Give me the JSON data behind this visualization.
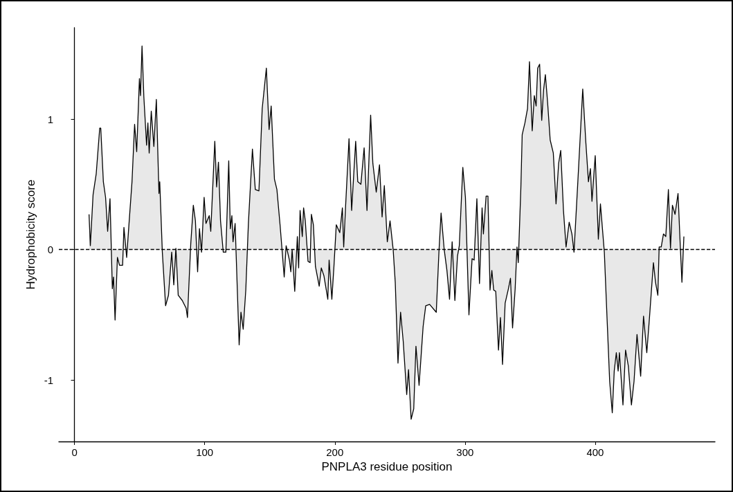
{
  "chart_data": {
    "type": "area",
    "xlabel": "PNPLA3 residue position",
    "ylabel": "Hydrophobicity score",
    "x": [
      11.2,
      12.2,
      14.3,
      16.7,
      19.4,
      20.2,
      22.2,
      23.9,
      25.5,
      27.3,
      29.1,
      30,
      31.2,
      33,
      34.6,
      37,
      38,
      40.1,
      41.7,
      44.2,
      46.2,
      47.8,
      49.9,
      50.7,
      51.9,
      53.3,
      55.4,
      56.4,
      57.4,
      59,
      61,
      62.9,
      64.9,
      65.5,
      67.5,
      70,
      72.2,
      74.7,
      76.3,
      77.9,
      79.7,
      82.8,
      85.8,
      86.8,
      89.3,
      91.3,
      92.9,
      94.6,
      96,
      97.6,
      99.6,
      101,
      103.5,
      104.7,
      107.8,
      109.2,
      110.6,
      112.2,
      114.3,
      116.3,
      118.5,
      119.7,
      120.9,
      121.8,
      123.4,
      126.5,
      127.9,
      129.6,
      131.6,
      133.6,
      136.7,
      138.9,
      141.7,
      144.2,
      147.4,
      149.5,
      151.1,
      153.6,
      155.5,
      158,
      161.1,
      162.6,
      165.1,
      166.2,
      167.2,
      169.2,
      171.2,
      172.2,
      173.3,
      175,
      176,
      177.3,
      179.4,
      181,
      182,
      183.5,
      185.1,
      188,
      189.6,
      191.6,
      194.6,
      195.6,
      197.7,
      199.3,
      201.1,
      203.8,
      205.8,
      206.8,
      208.2,
      210.9,
      212.9,
      216,
      217.6,
      220,
      222.5,
      224.7,
      227.5,
      229.2,
      231.8,
      234.3,
      236.3,
      238,
      240.3,
      242.4,
      244.8,
      246.4,
      248.5,
      250.5,
      252.5,
      255.2,
      256.6,
      258.6,
      260.6,
      262.3,
      264.7,
      267.8,
      269.8,
      272.8,
      277.9,
      280,
      281.6,
      284,
      286.1,
      288.1,
      290.1,
      292.2,
      294.2,
      295.6,
      298.3,
      300.3,
      303,
      305.4,
      307,
      309.1,
      311.1,
      313.1,
      314.1,
      316.2,
      317.6,
      319.2,
      320.6,
      322,
      323.6,
      325.7,
      327.2,
      328.8,
      330.8,
      333.3,
      334.9,
      336.5,
      338.5,
      339.9,
      340.9,
      342.9,
      343.9,
      346,
      348,
      349.5,
      351.6,
      353.2,
      354.6,
      355.8,
      357.3,
      358.9,
      360.3,
      361.7,
      363.4,
      365.4,
      367.8,
      369.9,
      371.9,
      373.5,
      375.6,
      377.6,
      380,
      382.1,
      383.7,
      386.7,
      390.4,
      392.8,
      394.8,
      396.3,
      397.5,
      400,
      402.4,
      404,
      407,
      409.1,
      411.1,
      413.1,
      414.6,
      416.2,
      417.6,
      418.6,
      421.3,
      423.3,
      425.4,
      427.8,
      429.8,
      432.1,
      434.9,
      437.1,
      439.6,
      441.6,
      444.7,
      446.3,
      448.1,
      449.1,
      450.7,
      452.4,
      454.2,
      456.2,
      457.8,
      459.3,
      461.3,
      463.6,
      465.4,
      466.6,
      468.1
    ],
    "series": [
      {
        "color": "#000000",
        "values": [
          0.27,
          0.03,
          0.42,
          0.58,
          0.93,
          0.93,
          0.52,
          0.4,
          0.14,
          0.39,
          -0.3,
          -0.21,
          -0.54,
          -0.06,
          -0.12,
          -0.12,
          0.17,
          -0.06,
          0.17,
          0.52,
          0.96,
          0.75,
          1.31,
          1.18,
          1.56,
          1.17,
          0.8,
          0.97,
          0.74,
          1.06,
          0.79,
          1.15,
          0.43,
          0.52,
          -0.02,
          -0.43,
          -0.35,
          -0.02,
          -0.27,
          0.01,
          -0.35,
          -0.39,
          -0.45,
          -0.52,
          0.04,
          0.34,
          0.22,
          -0.17,
          0.16,
          -0.02,
          0.4,
          0.2,
          0.26,
          0.14,
          0.83,
          0.48,
          0.67,
          0.22,
          -0.02,
          -0.02,
          0.68,
          0.16,
          0.26,
          0.06,
          0.2,
          -0.73,
          -0.48,
          -0.61,
          -0.31,
          0.2,
          0.77,
          0.46,
          0.45,
          1.08,
          1.39,
          0.92,
          1.1,
          0.54,
          0.46,
          0.18,
          -0.21,
          0.03,
          -0.08,
          -0.17,
          0,
          -0.32,
          0.1,
          -0.14,
          0.3,
          0.1,
          0.32,
          0.22,
          -0.09,
          -0.1,
          0.27,
          0.19,
          -0.13,
          -0.28,
          -0.14,
          -0.2,
          -0.38,
          -0.08,
          -0.38,
          -0.13,
          0.19,
          0.13,
          0.32,
          0.02,
          0.32,
          0.85,
          0.3,
          0.83,
          0.52,
          0.5,
          0.78,
          0.3,
          1.03,
          0.66,
          0.44,
          0.65,
          0.25,
          0.49,
          0.06,
          0.22,
          0,
          -0.25,
          -0.87,
          -0.48,
          -0.7,
          -1.11,
          -0.92,
          -1.3,
          -1.22,
          -0.74,
          -1.04,
          -0.59,
          -0.43,
          -0.42,
          -0.48,
          -0.01,
          0.28,
          0,
          -0.16,
          -0.38,
          0.06,
          -0.39,
          -0.05,
          0.03,
          0.63,
          0.4,
          -0.5,
          -0.07,
          -0.08,
          0.39,
          -0.26,
          0.32,
          0.12,
          0.41,
          0.41,
          -0.31,
          -0.16,
          -0.31,
          -0.32,
          -0.77,
          -0.52,
          -0.88,
          -0.41,
          -0.3,
          -0.22,
          -0.6,
          -0.3,
          0.02,
          -0.1,
          0.48,
          0.88,
          0.97,
          1.08,
          1.44,
          0.91,
          1.18,
          1.1,
          1.39,
          1.42,
          0.99,
          1.22,
          1.34,
          1.13,
          0.84,
          0.74,
          0.35,
          0.66,
          0.76,
          0.3,
          0.02,
          0.21,
          0.12,
          -0.02,
          0.53,
          1.23,
          0.82,
          0.52,
          0.62,
          0.37,
          0.72,
          0.08,
          0.35,
          -0.02,
          -0.53,
          -1.01,
          -1.25,
          -0.93,
          -0.79,
          -0.93,
          -0.79,
          -1.19,
          -0.77,
          -0.89,
          -1.19,
          -1.01,
          -0.65,
          -0.97,
          -0.51,
          -0.79,
          -0.53,
          -0.1,
          -0.25,
          -0.35,
          0.02,
          0.02,
          0.12,
          0.1,
          0.46,
          0.01,
          0.34,
          0.27,
          0.43,
          0.01,
          -0.25,
          0.1
        ]
      }
    ],
    "xlim": [
      -12,
      492
    ],
    "ylim": [
      -1.47,
      1.7
    ],
    "xticks": [
      0,
      100,
      200,
      300,
      400
    ],
    "yticks": [
      -1,
      0,
      1
    ],
    "ref_lines": [
      {
        "axis": "y",
        "value": 0,
        "line_style": "dashed",
        "color": "#000000"
      }
    ],
    "grid": false,
    "line_style": "solid",
    "marker": "none"
  }
}
